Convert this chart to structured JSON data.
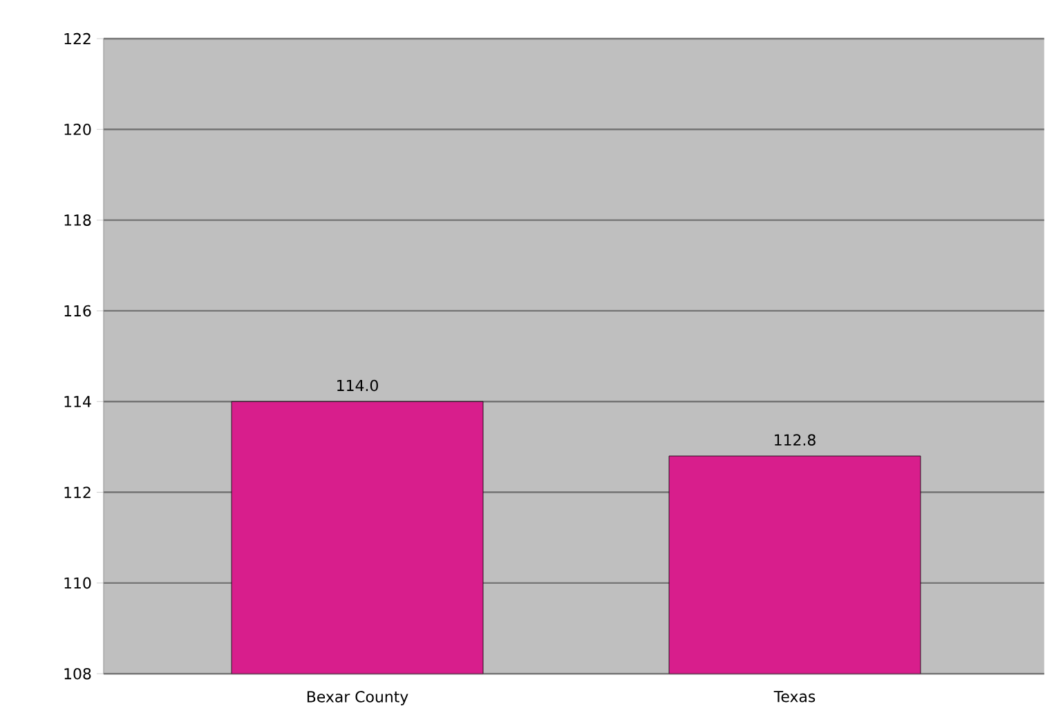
{
  "chart_data": {
    "type": "bar",
    "categories": [
      "Bexar County",
      "Texas"
    ],
    "values": [
      114.0,
      112.8
    ],
    "value_labels": [
      "114.0",
      "112.8"
    ],
    "color": "#d81e8c",
    "ylim": [
      108,
      122
    ],
    "yticks": [
      108,
      110,
      112,
      114,
      116,
      118,
      120,
      122
    ],
    "grid": "y"
  }
}
